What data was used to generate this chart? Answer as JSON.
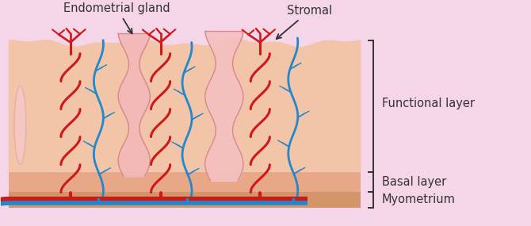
{
  "bg_color": "#f5d5e8",
  "functional_layer_color": "#f2c4a8",
  "basal_layer_color": "#e8a888",
  "myometrium_color": "#d4956a",
  "red_color": "#cc1a1a",
  "blue_color": "#2288cc",
  "gland_color": "#f0b8b8",
  "gland_border": "#d88888",
  "text_color": "#333333",
  "label_endometrial": "Endometrial gland",
  "label_stromal": "Stromal",
  "label_functional": "Functional layer",
  "label_basal": "Basal layer",
  "label_myometrium": "Myometrium",
  "fig_width": 6.7,
  "fig_height": 2.85,
  "dpi": 100
}
